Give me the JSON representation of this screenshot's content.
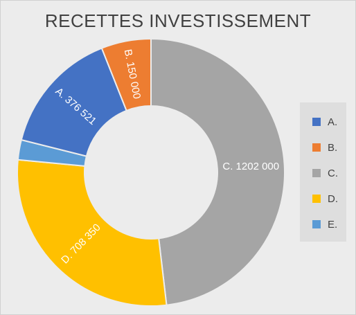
{
  "chart_data": {
    "type": "donut",
    "title": "RECETTES INVESTISSEMENT",
    "categories": [
      "A.",
      "B.",
      "C.",
      "D.",
      "E."
    ],
    "values": [
      376521,
      150000,
      1202000,
      708350,
      60000
    ],
    "data_labels": [
      "A. 376 521",
      "B. 150 000",
      "C. 1202 000",
      "D. 708 350",
      ""
    ],
    "colors": [
      "#4472c4",
      "#ed7d31",
      "#a5a5a5",
      "#ffc000",
      "#5b9bd5"
    ],
    "start_category": "C.",
    "direction": "clockwise",
    "legend_position": "right"
  }
}
